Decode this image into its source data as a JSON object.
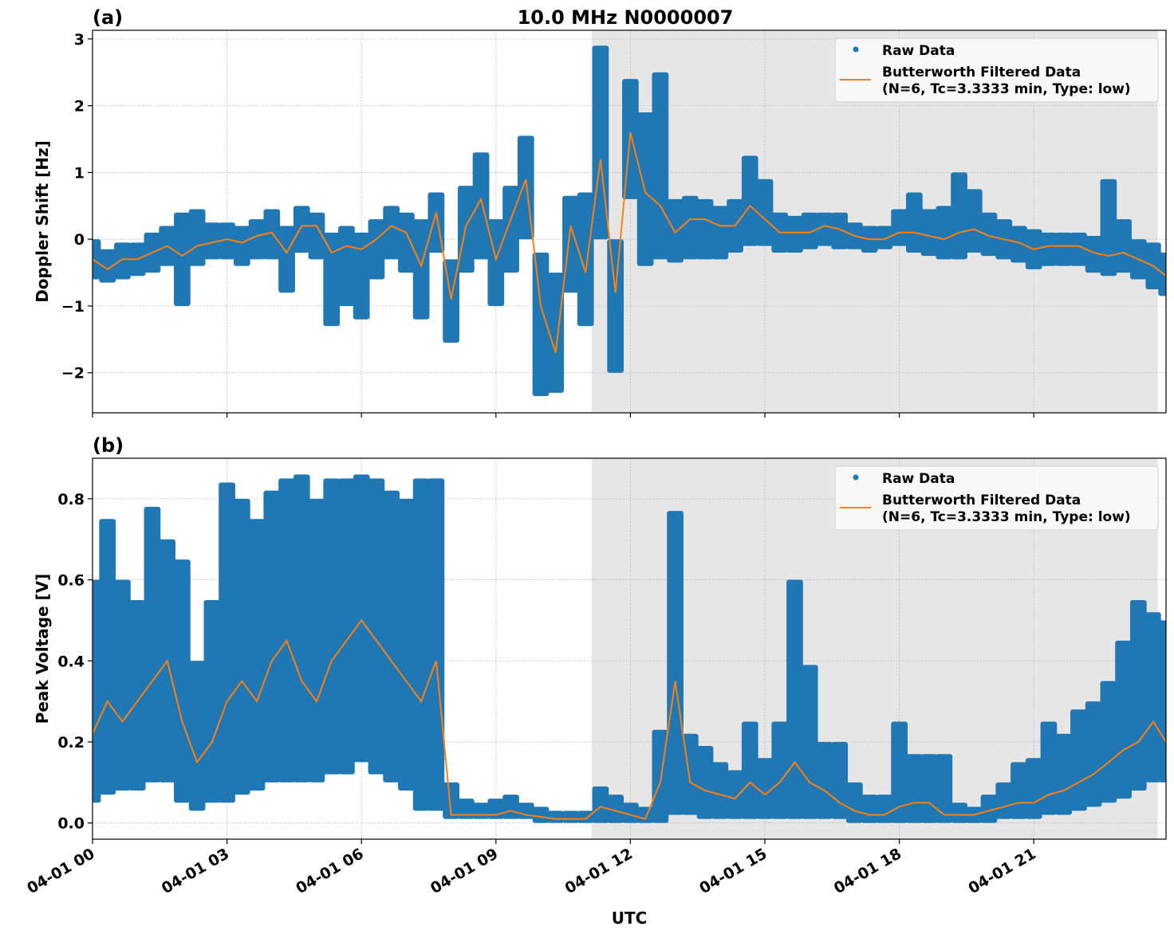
{
  "chart_data": {
    "title": "10.0 MHz N0000007",
    "xlabel": "UTC",
    "x_tick_labels": [
      "04-01 00",
      "04-01 03",
      "04-01 06",
      "04-01 09",
      "04-01 12",
      "04-01 15",
      "04-01 18",
      "04-01 21"
    ],
    "x_tick_times": [
      "00:00",
      "03:00",
      "06:00",
      "09:00",
      "12:00",
      "15:00",
      "18:00",
      "21:00"
    ],
    "xlim": [
      "00:00",
      "23:57"
    ],
    "shaded_span": [
      "11:08",
      "23:46"
    ],
    "shade_color": "#e6e6e6",
    "grid": true,
    "legend_placement": "upper right",
    "legend": {
      "raw": "Raw Data",
      "filtered_line1": "Butterworth Filtered Data",
      "filtered_line2": "(N=6, Tc=3.3333 min, Type: low)"
    },
    "colors": {
      "raw": "#1f77b4",
      "filtered": "#ff7f0e"
    },
    "x": [
      "00:00",
      "00:20",
      "00:40",
      "01:00",
      "01:20",
      "01:40",
      "02:00",
      "02:20",
      "02:40",
      "03:00",
      "03:20",
      "03:40",
      "04:00",
      "04:20",
      "04:40",
      "05:00",
      "05:20",
      "05:40",
      "06:00",
      "06:20",
      "06:40",
      "07:00",
      "07:20",
      "07:40",
      "08:00",
      "08:20",
      "08:40",
      "09:00",
      "09:20",
      "09:40",
      "10:00",
      "10:20",
      "10:40",
      "11:00",
      "11:20",
      "11:40",
      "12:00",
      "12:20",
      "12:40",
      "13:00",
      "13:20",
      "13:40",
      "14:00",
      "14:20",
      "14:40",
      "15:00",
      "15:20",
      "15:40",
      "16:00",
      "16:20",
      "16:40",
      "17:00",
      "17:20",
      "17:40",
      "18:00",
      "18:20",
      "18:40",
      "19:00",
      "19:20",
      "19:40",
      "20:00",
      "20:20",
      "20:40",
      "21:00",
      "21:20",
      "21:40",
      "22:00",
      "22:20",
      "22:40",
      "23:00",
      "23:20",
      "23:40",
      "23:57"
    ],
    "panels": [
      {
        "label": "(a)",
        "type": "scatter+line",
        "ylabel": "Doppler Shift [Hz]",
        "ylim": [
          -2.6,
          3.13
        ],
        "y_ticks": [
          -2,
          -1,
          0,
          1,
          2,
          3
        ],
        "y_tick_labels": [
          "−2",
          "−1",
          "0",
          "1",
          "2",
          "3"
        ],
        "filtered": [
          -0.3,
          -0.45,
          -0.3,
          -0.3,
          -0.2,
          -0.1,
          -0.25,
          -0.1,
          -0.05,
          0.0,
          -0.05,
          0.05,
          0.1,
          -0.2,
          0.2,
          0.2,
          -0.2,
          -0.1,
          -0.15,
          0.0,
          0.2,
          0.1,
          -0.4,
          0.4,
          -0.9,
          0.2,
          0.6,
          -0.3,
          0.3,
          0.9,
          -1.0,
          -1.7,
          0.2,
          -0.5,
          1.2,
          -0.8,
          1.6,
          0.7,
          0.5,
          0.1,
          0.3,
          0.3,
          0.2,
          0.2,
          0.5,
          0.3,
          0.1,
          0.1,
          0.1,
          0.2,
          0.15,
          0.05,
          0.0,
          0.0,
          0.1,
          0.1,
          0.05,
          0.0,
          0.1,
          0.15,
          0.05,
          0.0,
          -0.05,
          -0.15,
          -0.1,
          -0.1,
          -0.1,
          -0.2,
          -0.25,
          -0.2,
          -0.3,
          -0.4,
          -0.55
        ],
        "raw_range": [
          [
            -0.6,
            0.0
          ],
          [
            -0.65,
            -0.15
          ],
          [
            -0.6,
            -0.05
          ],
          [
            -0.55,
            -0.05
          ],
          [
            -0.5,
            0.1
          ],
          [
            -0.4,
            0.2
          ],
          [
            -1.0,
            0.4
          ],
          [
            -0.4,
            0.45
          ],
          [
            -0.3,
            0.25
          ],
          [
            -0.3,
            0.25
          ],
          [
            -0.4,
            0.2
          ],
          [
            -0.3,
            0.3
          ],
          [
            -0.3,
            0.45
          ],
          [
            -0.8,
            0.2
          ],
          [
            -0.2,
            0.5
          ],
          [
            -0.3,
            0.4
          ],
          [
            -1.3,
            0.1
          ],
          [
            -1.0,
            0.2
          ],
          [
            -1.2,
            0.1
          ],
          [
            -0.6,
            0.3
          ],
          [
            -0.3,
            0.5
          ],
          [
            -0.5,
            0.4
          ],
          [
            -1.2,
            0.3
          ],
          [
            -0.2,
            0.7
          ],
          [
            -1.55,
            -0.3
          ],
          [
            -0.5,
            0.8
          ],
          [
            -0.3,
            1.3
          ],
          [
            -1.0,
            0.3
          ],
          [
            -0.5,
            0.8
          ],
          [
            0.0,
            1.55
          ],
          [
            -2.35,
            -0.2
          ],
          [
            -2.3,
            -0.5
          ],
          [
            -0.8,
            0.65
          ],
          [
            -1.3,
            0.7
          ],
          [
            0.0,
            2.9
          ],
          [
            -2.0,
            0.0
          ],
          [
            0.6,
            2.4
          ],
          [
            -0.4,
            1.9
          ],
          [
            -0.3,
            2.5
          ],
          [
            -0.35,
            0.6
          ],
          [
            -0.3,
            0.65
          ],
          [
            -0.3,
            0.6
          ],
          [
            -0.3,
            0.5
          ],
          [
            -0.2,
            0.6
          ],
          [
            -0.1,
            1.25
          ],
          [
            -0.1,
            0.9
          ],
          [
            -0.2,
            0.4
          ],
          [
            -0.2,
            0.35
          ],
          [
            -0.15,
            0.4
          ],
          [
            -0.1,
            0.4
          ],
          [
            -0.15,
            0.4
          ],
          [
            -0.15,
            0.25
          ],
          [
            -0.2,
            0.2
          ],
          [
            -0.15,
            0.2
          ],
          [
            -0.1,
            0.45
          ],
          [
            -0.2,
            0.7
          ],
          [
            -0.25,
            0.45
          ],
          [
            -0.3,
            0.5
          ],
          [
            -0.3,
            1.0
          ],
          [
            -0.2,
            0.75
          ],
          [
            -0.25,
            0.4
          ],
          [
            -0.3,
            0.3
          ],
          [
            -0.35,
            0.2
          ],
          [
            -0.45,
            0.15
          ],
          [
            -0.4,
            0.1
          ],
          [
            -0.4,
            0.1
          ],
          [
            -0.4,
            0.1
          ],
          [
            -0.5,
            0.05
          ],
          [
            -0.55,
            0.9
          ],
          [
            -0.5,
            0.3
          ],
          [
            -0.6,
            0.0
          ],
          [
            -0.75,
            -0.05
          ],
          [
            -0.85,
            -0.2
          ]
        ]
      },
      {
        "label": "(b)",
        "type": "scatter+line",
        "ylabel": "Peak Voltage [V]",
        "ylim": [
          -0.04,
          0.9
        ],
        "y_ticks": [
          0.0,
          0.2,
          0.4,
          0.6,
          0.8
        ],
        "y_tick_labels": [
          "0.0",
          "0.2",
          "0.4",
          "0.6",
          "0.8"
        ],
        "filtered": [
          0.22,
          0.3,
          0.25,
          0.3,
          0.35,
          0.4,
          0.25,
          0.15,
          0.2,
          0.3,
          0.35,
          0.3,
          0.4,
          0.45,
          0.35,
          0.3,
          0.4,
          0.45,
          0.5,
          0.45,
          0.4,
          0.35,
          0.3,
          0.4,
          0.02,
          0.02,
          0.02,
          0.02,
          0.03,
          0.02,
          0.015,
          0.01,
          0.01,
          0.01,
          0.04,
          0.03,
          0.02,
          0.01,
          0.1,
          0.35,
          0.1,
          0.08,
          0.07,
          0.06,
          0.1,
          0.07,
          0.1,
          0.15,
          0.1,
          0.08,
          0.05,
          0.03,
          0.02,
          0.02,
          0.04,
          0.05,
          0.05,
          0.02,
          0.02,
          0.02,
          0.03,
          0.04,
          0.05,
          0.05,
          0.07,
          0.08,
          0.1,
          0.12,
          0.15,
          0.18,
          0.2,
          0.25,
          0.2
        ],
        "raw_range": [
          [
            0.05,
            0.6
          ],
          [
            0.07,
            0.75
          ],
          [
            0.08,
            0.6
          ],
          [
            0.08,
            0.55
          ],
          [
            0.1,
            0.78
          ],
          [
            0.1,
            0.7
          ],
          [
            0.05,
            0.65
          ],
          [
            0.03,
            0.4
          ],
          [
            0.05,
            0.55
          ],
          [
            0.05,
            0.84
          ],
          [
            0.07,
            0.8
          ],
          [
            0.08,
            0.75
          ],
          [
            0.1,
            0.82
          ],
          [
            0.1,
            0.85
          ],
          [
            0.1,
            0.86
          ],
          [
            0.1,
            0.8
          ],
          [
            0.12,
            0.85
          ],
          [
            0.12,
            0.85
          ],
          [
            0.15,
            0.86
          ],
          [
            0.12,
            0.85
          ],
          [
            0.1,
            0.82
          ],
          [
            0.08,
            0.8
          ],
          [
            0.03,
            0.85
          ],
          [
            0.03,
            0.85
          ],
          [
            0.01,
            0.1
          ],
          [
            0.01,
            0.06
          ],
          [
            0.01,
            0.05
          ],
          [
            0.01,
            0.06
          ],
          [
            0.01,
            0.07
          ],
          [
            0.01,
            0.05
          ],
          [
            0.0,
            0.04
          ],
          [
            0.0,
            0.03
          ],
          [
            0.0,
            0.03
          ],
          [
            0.0,
            0.03
          ],
          [
            0.0,
            0.09
          ],
          [
            0.0,
            0.07
          ],
          [
            0.0,
            0.05
          ],
          [
            0.0,
            0.04
          ],
          [
            0.0,
            0.23
          ],
          [
            0.02,
            0.77
          ],
          [
            0.02,
            0.22
          ],
          [
            0.01,
            0.19
          ],
          [
            0.01,
            0.15
          ],
          [
            0.01,
            0.13
          ],
          [
            0.01,
            0.25
          ],
          [
            0.01,
            0.16
          ],
          [
            0.01,
            0.25
          ],
          [
            0.01,
            0.6
          ],
          [
            0.01,
            0.39
          ],
          [
            0.01,
            0.2
          ],
          [
            0.01,
            0.2
          ],
          [
            0.0,
            0.1
          ],
          [
            0.0,
            0.07
          ],
          [
            0.0,
            0.07
          ],
          [
            0.0,
            0.25
          ],
          [
            0.0,
            0.17
          ],
          [
            0.0,
            0.17
          ],
          [
            0.0,
            0.17
          ],
          [
            0.0,
            0.05
          ],
          [
            0.0,
            0.04
          ],
          [
            0.0,
            0.07
          ],
          [
            0.01,
            0.1
          ],
          [
            0.01,
            0.15
          ],
          [
            0.01,
            0.16
          ],
          [
            0.02,
            0.25
          ],
          [
            0.02,
            0.22
          ],
          [
            0.03,
            0.28
          ],
          [
            0.04,
            0.3
          ],
          [
            0.05,
            0.35
          ],
          [
            0.06,
            0.45
          ],
          [
            0.08,
            0.55
          ],
          [
            0.1,
            0.52
          ],
          [
            0.1,
            0.5
          ]
        ]
      }
    ]
  }
}
